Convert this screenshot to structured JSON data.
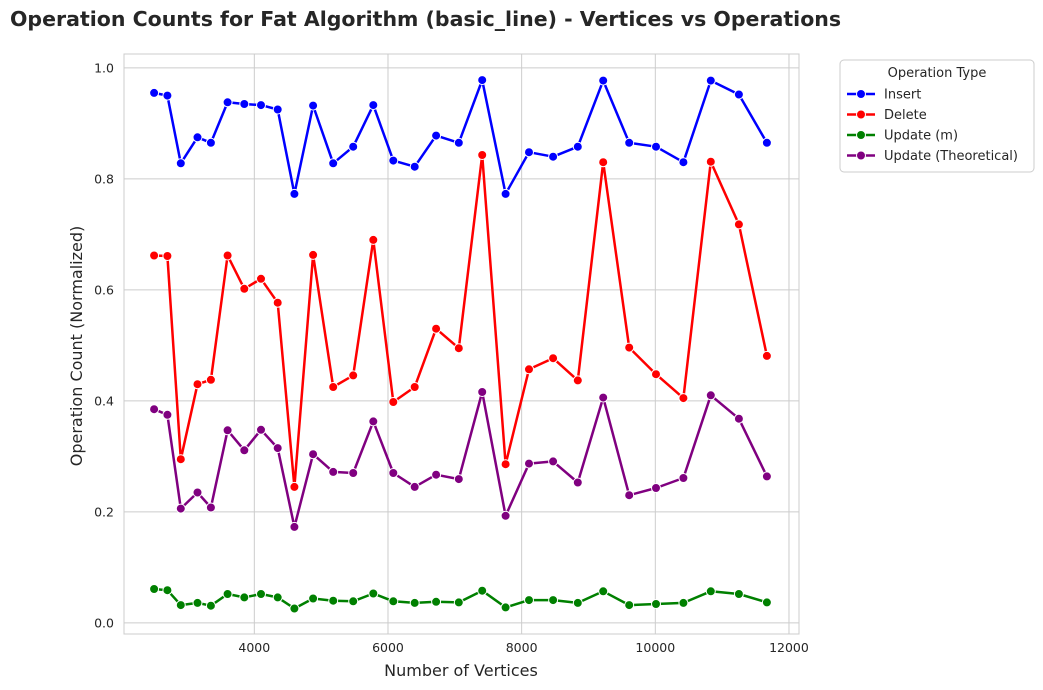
{
  "chart_data": {
    "type": "line",
    "title": "Operation Counts for Fat Algorithm (basic_line) - Vertices vs Operations",
    "xlabel": "Number of Vertices",
    "ylabel": "Operation Count (Normalized)",
    "xlim": [
      2050,
      12150
    ],
    "ylim": [
      -0.02,
      1.025
    ],
    "xticks": [
      4000,
      6000,
      8000,
      10000,
      12000
    ],
    "yticks": [
      0.0,
      0.2,
      0.4,
      0.6,
      0.8,
      1.0
    ],
    "grid": true,
    "legend": {
      "title": "Operation Type",
      "placement": "outside-top-right"
    },
    "x": [
      2500,
      2700,
      2900,
      3150,
      3350,
      3600,
      3850,
      4100,
      4350,
      4600,
      4880,
      5180,
      5480,
      5780,
      6080,
      6400,
      6720,
      7060,
      7410,
      7760,
      8110,
      8470,
      8840,
      9220,
      9610,
      10010,
      10420,
      10830,
      11250,
      11670
    ],
    "series": [
      {
        "name": "Insert",
        "color": "#0000ff",
        "values": [
          0.955,
          0.95,
          0.828,
          0.875,
          0.865,
          0.938,
          0.935,
          0.933,
          0.925,
          0.773,
          0.932,
          0.828,
          0.858,
          0.933,
          0.833,
          0.822,
          0.878,
          0.865,
          0.978,
          0.773,
          0.848,
          0.84,
          0.858,
          0.977,
          0.865,
          0.858,
          0.83,
          0.977,
          0.952,
          0.865
        ]
      },
      {
        "name": "Delete",
        "color": "#ff0000",
        "values": [
          0.662,
          0.661,
          0.295,
          0.43,
          0.438,
          0.662,
          0.602,
          0.62,
          0.577,
          0.245,
          0.663,
          0.425,
          0.446,
          0.69,
          0.398,
          0.425,
          0.53,
          0.495,
          0.843,
          0.286,
          0.457,
          0.477,
          0.437,
          0.83,
          0.496,
          0.448,
          0.405,
          0.831,
          0.718,
          0.481
        ]
      },
      {
        "name": "Update (m)",
        "color": "#008000",
        "values": [
          0.061,
          0.059,
          0.032,
          0.036,
          0.031,
          0.052,
          0.046,
          0.052,
          0.046,
          0.026,
          0.044,
          0.04,
          0.039,
          0.053,
          0.039,
          0.036,
          0.038,
          0.037,
          0.058,
          0.028,
          0.041,
          0.041,
          0.036,
          0.057,
          0.032,
          0.034,
          0.036,
          0.057,
          0.052,
          0.037
        ]
      },
      {
        "name": "Update (Theoretical)",
        "color": "#800080",
        "values": [
          0.385,
          0.375,
          0.206,
          0.235,
          0.208,
          0.347,
          0.311,
          0.348,
          0.315,
          0.173,
          0.304,
          0.272,
          0.27,
          0.363,
          0.27,
          0.245,
          0.267,
          0.259,
          0.416,
          0.193,
          0.287,
          0.291,
          0.253,
          0.406,
          0.23,
          0.243,
          0.261,
          0.41,
          0.368,
          0.264
        ]
      }
    ]
  }
}
